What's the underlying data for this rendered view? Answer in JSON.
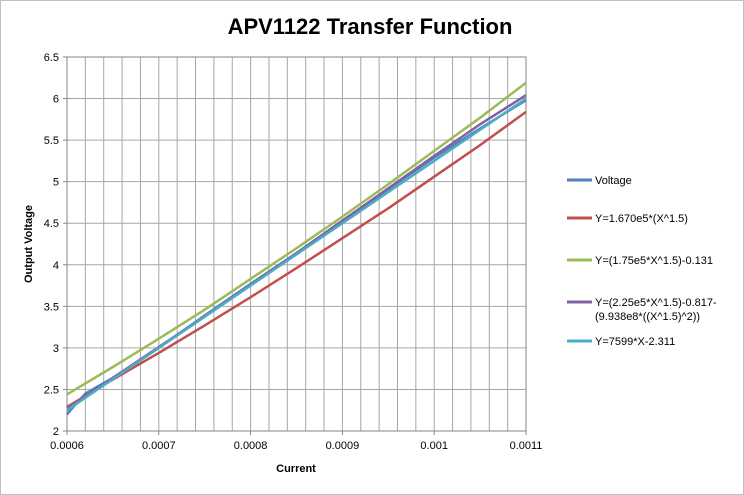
{
  "chart_data": {
    "type": "line",
    "title": "APV1122 Transfer Function",
    "xlabel": "Current",
    "ylabel": "Output Voltage",
    "xlim": [
      0.0006,
      0.0011
    ],
    "ylim": [
      2,
      6.5
    ],
    "x_ticks": [
      "0.0006",
      "0.0007",
      "0.0008",
      "0.0009",
      "0.001",
      "0.0011"
    ],
    "y_ticks": [
      "2",
      "2.5",
      "3",
      "3.5",
      "4",
      "4.5",
      "5",
      "5.5",
      "6",
      "6.5"
    ],
    "grid": true,
    "legend_position": "right",
    "series": [
      {
        "name": "Voltage",
        "color": "#4f81bd",
        "x": [
          0.0006,
          0.00061,
          0.00062,
          0.00065,
          0.0007,
          0.00075,
          0.0008,
          0.00085,
          0.0009,
          0.00095,
          0.001,
          0.00105,
          0.0011
        ],
        "y": [
          2.2,
          2.33,
          2.45,
          2.64,
          3.0,
          3.39,
          3.77,
          4.14,
          4.53,
          4.91,
          5.29,
          5.64,
          5.98
        ]
      },
      {
        "name": "Y=1.670e5*(X^1.5)",
        "color": "#c0504d",
        "x": [
          0.0006,
          0.00065,
          0.0007,
          0.00075,
          0.0008,
          0.00085,
          0.0009,
          0.00095,
          0.001,
          0.00105,
          0.0011
        ],
        "y": [
          2.29,
          2.62,
          2.94,
          3.27,
          3.61,
          3.96,
          4.32,
          4.68,
          5.06,
          5.44,
          5.84
        ]
      },
      {
        "name": "Y=(1.75e5*X^1.5)-0.131",
        "color": "#9bbb59",
        "x": [
          0.0006,
          0.00065,
          0.0007,
          0.00075,
          0.0008,
          0.00085,
          0.0009,
          0.00095,
          0.001,
          0.00105,
          0.0011
        ],
        "y": [
          2.44,
          2.77,
          3.11,
          3.46,
          3.83,
          4.2,
          4.58,
          4.97,
          5.37,
          5.77,
          6.19
        ]
      },
      {
        "name": "Y=(2.25e5*X^1.5)-0.817-(9.938e8*((X^1.5)^2))",
        "legend_lines": [
          "Y=(2.25e5*X^1.5)-0.817-",
          "(9.938e8*((X^1.5)^2))"
        ],
        "color": "#8064a2",
        "x": [
          0.0006,
          0.00065,
          0.0007,
          0.00075,
          0.0008,
          0.00085,
          0.0009,
          0.00095,
          0.001,
          0.00105,
          0.0011
        ],
        "y": [
          2.27,
          2.64,
          3.01,
          3.38,
          3.76,
          4.14,
          4.53,
          4.92,
          5.31,
          5.69,
          6.04
        ]
      },
      {
        "name": "Y=7599*X-2.311",
        "color": "#4bacc6",
        "x": [
          0.0006,
          0.0011
        ],
        "y": [
          2.25,
          6.0
        ]
      }
    ]
  }
}
